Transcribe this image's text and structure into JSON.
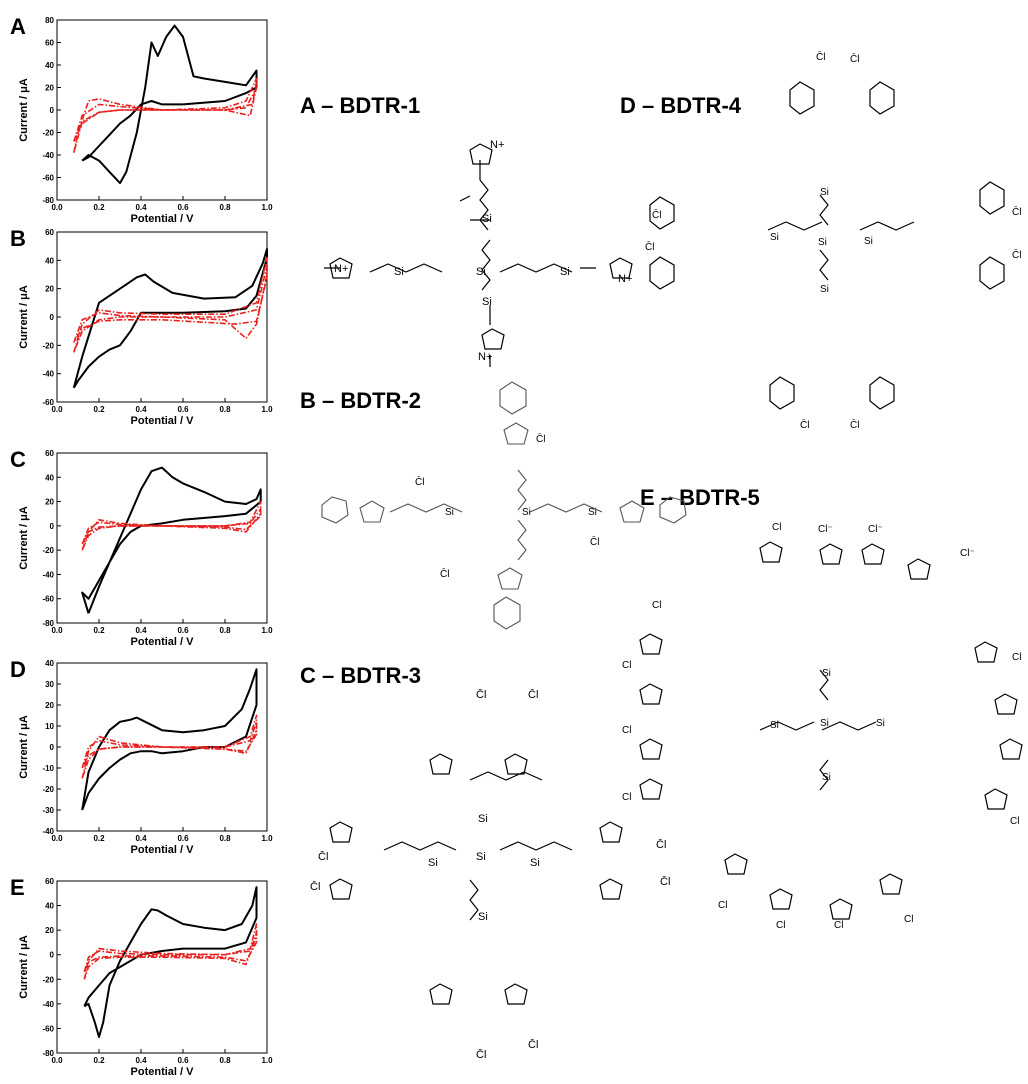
{
  "colors": {
    "solid": "#000000",
    "dashed": "#e8201e"
  },
  "chart_data": [
    {
      "type": "line",
      "panel": "A",
      "xlabel": "Potential / V",
      "ylabel": "Current / μA",
      "xlim": [
        0.0,
        1.0
      ],
      "ylim": [
        -80,
        80
      ],
      "xticks": [
        0.0,
        0.2,
        0.4,
        0.6,
        0.8,
        1.0
      ],
      "yticks": [
        -80,
        -60,
        -40,
        -20,
        0,
        20,
        40,
        60,
        80
      ],
      "series": [
        {
          "style": "solid",
          "x": [
            0.12,
            0.15,
            0.2,
            0.25,
            0.3,
            0.33,
            0.38,
            0.42,
            0.45,
            0.48,
            0.52,
            0.56,
            0.6,
            0.65,
            0.7,
            0.8,
            0.9,
            0.95,
            0.95,
            0.9,
            0.8,
            0.6,
            0.5,
            0.45,
            0.4,
            0.35,
            0.3,
            0.25,
            0.2,
            0.15,
            0.12
          ],
          "y": [
            -45,
            -40,
            -45,
            -55,
            -65,
            -55,
            -20,
            20,
            60,
            48,
            65,
            75,
            65,
            30,
            28,
            25,
            22,
            35,
            20,
            15,
            8,
            5,
            5,
            8,
            5,
            -5,
            -12,
            -22,
            -32,
            -42,
            -45
          ]
        },
        {
          "style": "dashdot",
          "x": [
            0.08,
            0.1,
            0.15,
            0.2,
            0.3,
            0.5,
            0.8,
            0.92,
            0.95,
            0.95,
            0.9,
            0.8,
            0.5,
            0.3,
            0.2,
            0.12,
            0.08
          ],
          "y": [
            -38,
            -20,
            8,
            10,
            5,
            0,
            0,
            -5,
            20,
            28,
            8,
            2,
            0,
            0,
            -2,
            -10,
            -38
          ]
        },
        {
          "style": "dashdot",
          "x": [
            0.08,
            0.12,
            0.2,
            0.3,
            0.5,
            0.8,
            0.93,
            0.95,
            0.95,
            0.9,
            0.8,
            0.5,
            0.3,
            0.2,
            0.12,
            0.08
          ],
          "y": [
            -28,
            -5,
            5,
            3,
            0,
            0,
            5,
            25,
            20,
            2,
            0,
            0,
            0,
            -2,
            -12,
            -28
          ]
        }
      ]
    },
    {
      "type": "line",
      "panel": "B",
      "xlabel": "Potential / V",
      "ylabel": "Current / μA",
      "xlim": [
        0.0,
        1.0
      ],
      "ylim": [
        -60,
        60
      ],
      "xticks": [
        0.0,
        0.2,
        0.4,
        0.6,
        0.8,
        1.0
      ],
      "yticks": [
        -60,
        -40,
        -20,
        0,
        20,
        40,
        60
      ],
      "series": [
        {
          "style": "solid",
          "x": [
            0.08,
            0.12,
            0.2,
            0.3,
            0.38,
            0.42,
            0.46,
            0.55,
            0.7,
            0.85,
            0.93,
            0.98,
            1.0,
            1.0,
            0.95,
            0.9,
            0.8,
            0.6,
            0.5,
            0.4,
            0.35,
            0.3,
            0.25,
            0.2,
            0.15,
            0.1,
            0.08
          ],
          "y": [
            -50,
            -28,
            10,
            20,
            28,
            30,
            25,
            17,
            13,
            14,
            22,
            38,
            48,
            42,
            15,
            6,
            4,
            3,
            3,
            3,
            -10,
            -20,
            -23,
            -28,
            -35,
            -45,
            -50
          ]
        },
        {
          "style": "dashdot",
          "x": [
            0.08,
            0.12,
            0.2,
            0.3,
            0.5,
            0.8,
            0.95,
            1.0,
            1.0,
            0.95,
            0.9,
            0.8,
            0.5,
            0.3,
            0.2,
            0.12,
            0.08
          ],
          "y": [
            -25,
            -5,
            5,
            3,
            2,
            2,
            10,
            42,
            30,
            -5,
            -15,
            -2,
            0,
            0,
            -2,
            -10,
            -25
          ]
        },
        {
          "style": "dashdot",
          "x": [
            0.08,
            0.12,
            0.2,
            0.3,
            0.5,
            0.8,
            0.95,
            1.0,
            1.0,
            0.95,
            0.85,
            0.5,
            0.3,
            0.2,
            0.12,
            0.08
          ],
          "y": [
            -18,
            -2,
            3,
            1,
            0,
            0,
            5,
            36,
            28,
            -3,
            -5,
            -2,
            -2,
            -3,
            -8,
            -18
          ]
        }
      ]
    },
    {
      "type": "line",
      "panel": "C",
      "xlabel": "Potential / V",
      "ylabel": "Current / μA",
      "xlim": [
        0.0,
        1.0
      ],
      "ylim": [
        -80,
        60
      ],
      "xticks": [
        0.0,
        0.2,
        0.4,
        0.6,
        0.8,
        1.0
      ],
      "yticks": [
        -80,
        -60,
        -40,
        -20,
        0,
        20,
        40,
        60
      ],
      "series": [
        {
          "style": "solid",
          "x": [
            0.15,
            0.2,
            0.25,
            0.3,
            0.35,
            0.4,
            0.45,
            0.5,
            0.55,
            0.6,
            0.7,
            0.8,
            0.9,
            0.95,
            0.97,
            0.97,
            0.9,
            0.8,
            0.6,
            0.5,
            0.4,
            0.35,
            0.3,
            0.25,
            0.2,
            0.15,
            0.12,
            0.15
          ],
          "y": [
            -72,
            -50,
            -30,
            -10,
            10,
            30,
            45,
            48,
            40,
            35,
            28,
            20,
            18,
            22,
            30,
            20,
            10,
            8,
            5,
            2,
            0,
            -5,
            -15,
            -30,
            -45,
            -60,
            -55,
            -72
          ]
        },
        {
          "style": "dashdot",
          "x": [
            0.12,
            0.15,
            0.2,
            0.3,
            0.5,
            0.8,
            0.92,
            0.97,
            0.97,
            0.9,
            0.8,
            0.5,
            0.3,
            0.2,
            0.15,
            0.12
          ],
          "y": [
            -20,
            -5,
            5,
            2,
            0,
            0,
            3,
            20,
            10,
            -5,
            -2,
            0,
            0,
            -2,
            -8,
            -20
          ]
        },
        {
          "style": "dashdot",
          "x": [
            0.12,
            0.15,
            0.2,
            0.3,
            0.5,
            0.8,
            0.92,
            0.97,
            0.97,
            0.9,
            0.8,
            0.5,
            0.3,
            0.2,
            0.15,
            0.12
          ],
          "y": [
            -15,
            -2,
            3,
            1,
            0,
            0,
            2,
            14,
            8,
            -3,
            -1,
            0,
            0,
            -1,
            -5,
            -15
          ]
        }
      ]
    },
    {
      "type": "line",
      "panel": "D",
      "xlabel": "Potential / V",
      "ylabel": "Current / μA",
      "xlim": [
        0.0,
        1.0
      ],
      "ylim": [
        -40,
        40
      ],
      "xticks": [
        0.0,
        0.2,
        0.4,
        0.6,
        0.8,
        1.0
      ],
      "yticks": [
        -40,
        -30,
        -20,
        -10,
        0,
        10,
        20,
        30,
        40
      ],
      "series": [
        {
          "style": "solid",
          "x": [
            0.12,
            0.15,
            0.2,
            0.25,
            0.3,
            0.35,
            0.38,
            0.42,
            0.5,
            0.6,
            0.7,
            0.8,
            0.88,
            0.92,
            0.95,
            0.95,
            0.9,
            0.8,
            0.7,
            0.6,
            0.5,
            0.45,
            0.4,
            0.35,
            0.3,
            0.25,
            0.2,
            0.15,
            0.12
          ],
          "y": [
            -30,
            -12,
            0,
            8,
            12,
            13,
            14,
            12,
            8,
            7,
            8,
            10,
            18,
            28,
            37,
            20,
            5,
            0,
            0,
            -2,
            -3,
            -2,
            -2,
            -3,
            -6,
            -10,
            -15,
            -22,
            -30
          ]
        },
        {
          "style": "dashdot",
          "x": [
            0.12,
            0.15,
            0.2,
            0.3,
            0.5,
            0.8,
            0.92,
            0.95,
            0.95,
            0.9,
            0.8,
            0.5,
            0.3,
            0.2,
            0.15,
            0.12
          ],
          "y": [
            -15,
            -2,
            5,
            2,
            0,
            0,
            5,
            15,
            8,
            -3,
            -1,
            0,
            0,
            -1,
            -6,
            -15
          ]
        },
        {
          "style": "dashdot",
          "x": [
            0.12,
            0.15,
            0.2,
            0.3,
            0.5,
            0.8,
            0.92,
            0.95,
            0.95,
            0.9,
            0.8,
            0.5,
            0.3,
            0.2,
            0.15,
            0.12
          ],
          "y": [
            -10,
            0,
            3,
            1,
            0,
            0,
            3,
            12,
            6,
            -2,
            -1,
            0,
            0,
            -1,
            -4,
            -10
          ]
        }
      ]
    },
    {
      "type": "line",
      "panel": "E",
      "xlabel": "Potential / V",
      "ylabel": "Current / μA",
      "xlim": [
        0.0,
        1.0
      ],
      "ylim": [
        -80,
        60
      ],
      "xticks": [
        0.0,
        0.2,
        0.4,
        0.6,
        0.8,
        1.0
      ],
      "yticks": [
        -80,
        -60,
        -40,
        -20,
        0,
        20,
        40,
        60
      ],
      "series": [
        {
          "style": "solid",
          "x": [
            0.13,
            0.15,
            0.18,
            0.2,
            0.22,
            0.25,
            0.3,
            0.35,
            0.4,
            0.45,
            0.48,
            0.52,
            0.6,
            0.7,
            0.8,
            0.88,
            0.93,
            0.95,
            0.95,
            0.9,
            0.8,
            0.6,
            0.5,
            0.4,
            0.3,
            0.25,
            0.2,
            0.15,
            0.13
          ],
          "y": [
            -42,
            -40,
            -55,
            -67,
            -55,
            -25,
            -5,
            10,
            25,
            37,
            36,
            32,
            25,
            22,
            20,
            25,
            40,
            55,
            30,
            10,
            5,
            5,
            3,
            0,
            -10,
            -15,
            -25,
            -35,
            -42
          ]
        },
        {
          "style": "dashdot",
          "x": [
            0.13,
            0.15,
            0.2,
            0.3,
            0.5,
            0.8,
            0.92,
            0.95,
            0.95,
            0.9,
            0.8,
            0.5,
            0.3,
            0.2,
            0.15,
            0.13
          ],
          "y": [
            -20,
            -5,
            5,
            3,
            1,
            0,
            5,
            25,
            15,
            -8,
            -3,
            -2,
            -2,
            -3,
            -10,
            -20
          ]
        },
        {
          "style": "dashdot",
          "x": [
            0.13,
            0.15,
            0.2,
            0.3,
            0.5,
            0.8,
            0.92,
            0.95,
            0.95,
            0.9,
            0.8,
            0.5,
            0.3,
            0.2,
            0.15,
            0.13
          ],
          "y": [
            -14,
            -2,
            3,
            1,
            0,
            0,
            3,
            18,
            10,
            -5,
            -2,
            -1,
            -1,
            -2,
            -6,
            -14
          ]
        }
      ]
    }
  ],
  "molecules": [
    {
      "id": "bdtr-1",
      "title": "A – BDTR-1"
    },
    {
      "id": "bdtr-2",
      "title": "B – BDTR-2"
    },
    {
      "id": "bdtr-3",
      "title": "C – BDTR-3"
    },
    {
      "id": "bdtr-4",
      "title": "D – BDTR-4"
    },
    {
      "id": "bdtr-5",
      "title": "E – BDTR-5"
    }
  ],
  "labels": {
    "si": "Si",
    "n": "N",
    "nplus": "N+",
    "plus": "+",
    "cl": "Cl",
    "clminus": "Cl⁻",
    "cl_bar": "C̄l"
  }
}
